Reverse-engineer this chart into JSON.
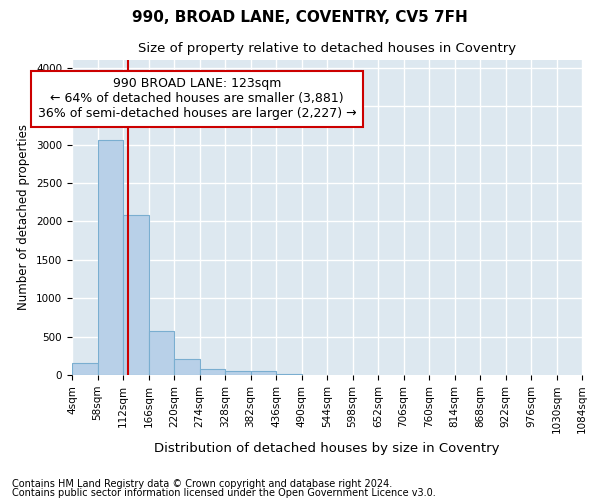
{
  "title": "990, BROAD LANE, COVENTRY, CV5 7FH",
  "subtitle": "Size of property relative to detached houses in Coventry",
  "xlabel": "Distribution of detached houses by size in Coventry",
  "ylabel": "Number of detached properties",
  "footnote1": "Contains HM Land Registry data © Crown copyright and database right 2024.",
  "footnote2": "Contains public sector information licensed under the Open Government Licence v3.0.",
  "bin_edges": [
    4,
    58,
    112,
    166,
    220,
    274,
    328,
    382,
    436,
    490,
    544,
    598,
    652,
    706,
    760,
    814,
    868,
    922,
    976,
    1030,
    1084
  ],
  "bar_heights": [
    150,
    3060,
    2080,
    570,
    210,
    75,
    50,
    50,
    10,
    0,
    0,
    0,
    0,
    0,
    0,
    0,
    0,
    0,
    0,
    0
  ],
  "bar_color": "#b8d0e8",
  "bar_edgecolor": "#7aaed0",
  "bar_linewidth": 0.8,
  "vline_x": 123,
  "vline_color": "#cc0000",
  "vline_linewidth": 1.5,
  "annotation_line1": "990 BROAD LANE: 123sqm",
  "annotation_line2": "← 64% of detached houses are smaller (3,881)",
  "annotation_line3": "36% of semi-detached houses are larger (2,227) →",
  "ylim": [
    0,
    4100
  ],
  "xlim": [
    4,
    1084
  ],
  "title_fontsize": 11,
  "subtitle_fontsize": 9.5,
  "ylabel_fontsize": 8.5,
  "xlabel_fontsize": 9.5,
  "tick_fontsize": 7.5,
  "annotation_fontsize": 9,
  "bg_color": "#dde8f0",
  "fig_bg_color": "#ffffff",
  "grid_color": "#ffffff",
  "grid_linewidth": 1.0,
  "footnote_fontsize": 7
}
